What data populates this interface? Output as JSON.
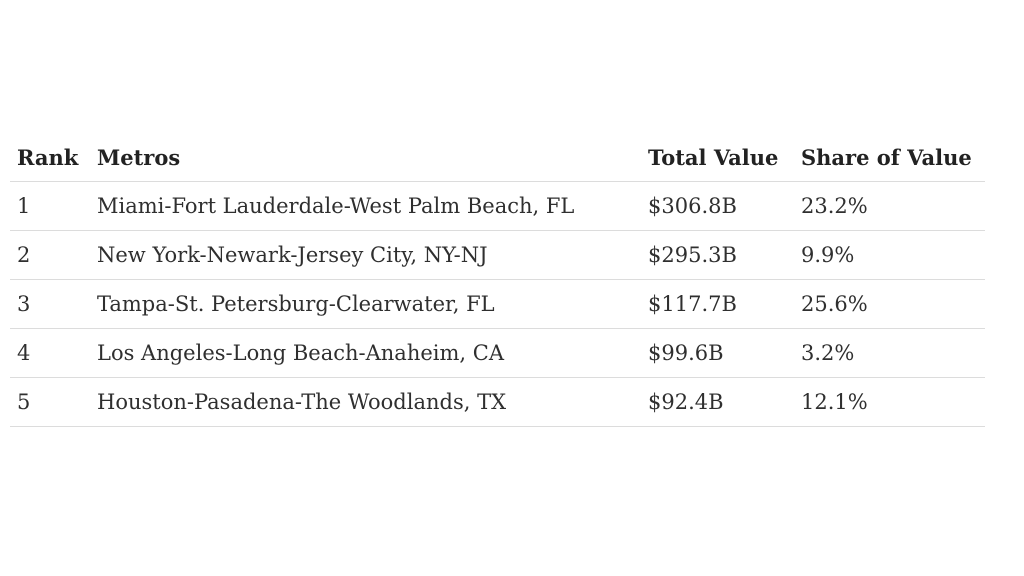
{
  "chart_data": {
    "type": "table",
    "columns": [
      "Rank",
      "Metros",
      "Total Value",
      "Share of Value"
    ],
    "rows": [
      [
        "1",
        "Miami-Fort Lauderdale-West Palm Beach, FL",
        "$306.8B",
        "23.2%"
      ],
      [
        "2",
        "New York-Newark-Jersey City, NY-NJ",
        "$295.3B",
        "9.9%"
      ],
      [
        "3",
        "Tampa-St. Petersburg-Clearwater, FL",
        "$117.7B",
        "25.6%"
      ],
      [
        "4",
        "Los Angeles-Long Beach-Anaheim, CA",
        "$99.6B",
        "3.2%"
      ],
      [
        "5",
        "Houston-Pasadena-The Woodlands, TX",
        "$92.4B",
        "12.1%"
      ]
    ]
  }
}
